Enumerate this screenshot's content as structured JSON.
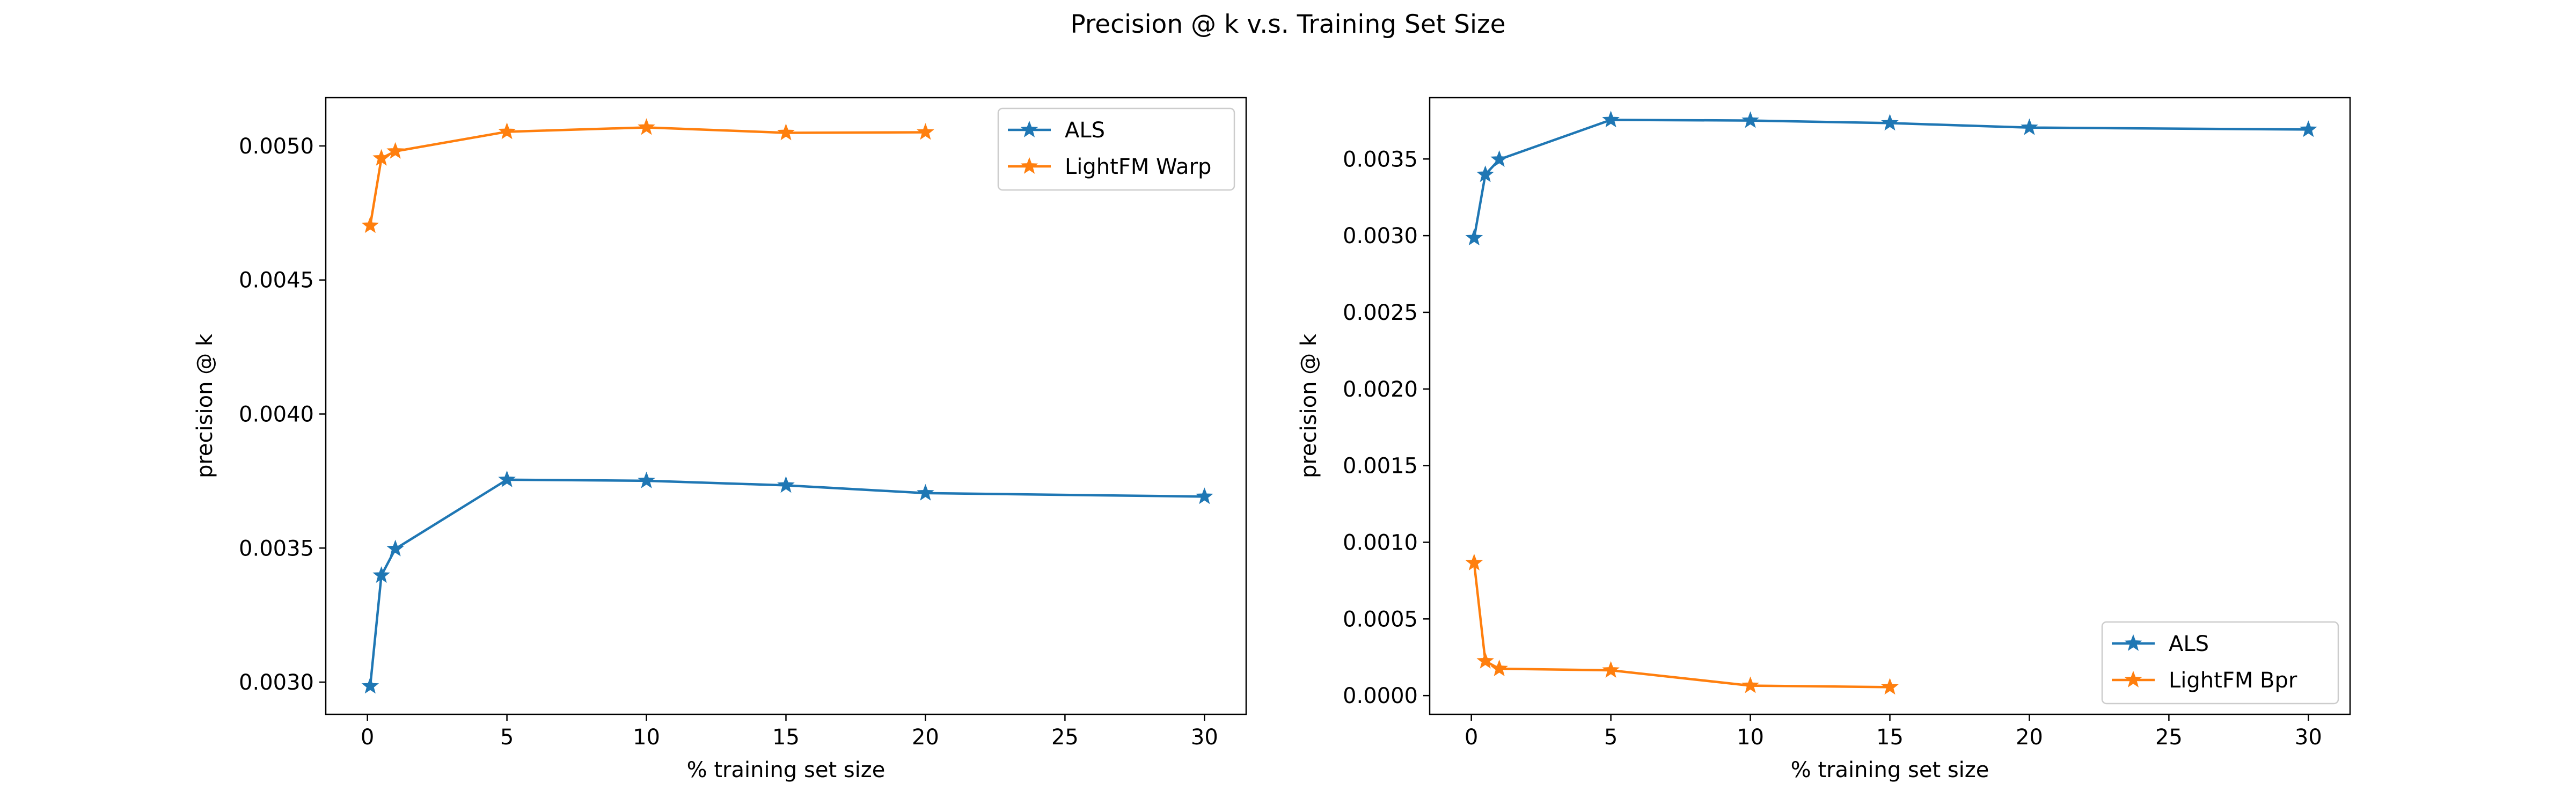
{
  "figure": {
    "title": "Precision @ k v.s. Training Set Size"
  },
  "colors": {
    "ALS": "#1f77b4",
    "LightFM": "#ff7f0e"
  },
  "chart_data": [
    {
      "type": "line",
      "xlabel": "% training set size",
      "ylabel": "precision @ k",
      "xlim": [
        -1.4937,
        31.4937
      ],
      "ylim": [
        0.00288,
        0.00518
      ],
      "xticks": [
        0,
        5,
        10,
        15,
        20,
        25,
        30
      ],
      "xtick_labels": [
        "0",
        "5",
        "10",
        "15",
        "20",
        "25",
        "30"
      ],
      "yticks": [
        0.003,
        0.0035,
        0.004,
        0.0045,
        0.005
      ],
      "ytick_labels": [
        "0.0030",
        "0.0035",
        "0.0040",
        "0.0045",
        "0.0050"
      ],
      "grid": false,
      "legend_position": "upper right",
      "marker": "star",
      "series": [
        {
          "name": "ALS",
          "color": "#1f77b4",
          "x": [
            0.1,
            0.5,
            1,
            5,
            10,
            15,
            20,
            30
          ],
          "y": [
            0.002985,
            0.003398,
            0.003497,
            0.003755,
            0.003751,
            0.003734,
            0.003705,
            0.003692
          ]
        },
        {
          "name": "LightFM Warp",
          "color": "#ff7f0e",
          "x": [
            0.1,
            0.5,
            1,
            5,
            10,
            15,
            20
          ],
          "y": [
            0.004703,
            0.004954,
            0.00498,
            0.005053,
            0.005069,
            0.005049,
            0.005051
          ]
        }
      ]
    },
    {
      "type": "line",
      "xlabel": "% training set size",
      "ylabel": "precision @ k",
      "xlim": [
        -1.4937,
        31.4937
      ],
      "ylim": [
        -0.000122,
        0.0039
      ],
      "xticks": [
        0,
        5,
        10,
        15,
        20,
        25,
        30
      ],
      "xtick_labels": [
        "0",
        "5",
        "10",
        "15",
        "20",
        "25",
        "30"
      ],
      "yticks": [
        0.0,
        0.0005,
        0.001,
        0.0015,
        0.002,
        0.0025,
        0.003,
        0.0035
      ],
      "ytick_labels": [
        "0.0000",
        "0.0005",
        "0.0010",
        "0.0015",
        "0.0020",
        "0.0025",
        "0.0030",
        "0.0035"
      ],
      "grid": false,
      "legend_position": "lower right",
      "marker": "star",
      "series": [
        {
          "name": "ALS",
          "color": "#1f77b4",
          "x": [
            0.1,
            0.5,
            1,
            5,
            10,
            15,
            20,
            30
          ],
          "y": [
            0.002985,
            0.003398,
            0.003497,
            0.003755,
            0.003751,
            0.003734,
            0.003705,
            0.003692
          ]
        },
        {
          "name": "LightFM Bpr",
          "color": "#ff7f0e",
          "x": [
            0.1,
            0.5,
            1,
            5,
            10,
            15
          ],
          "y": [
            0.000865,
            0.000225,
            0.000175,
            0.000165,
            6.5e-05,
            5.5e-05
          ]
        }
      ]
    }
  ]
}
